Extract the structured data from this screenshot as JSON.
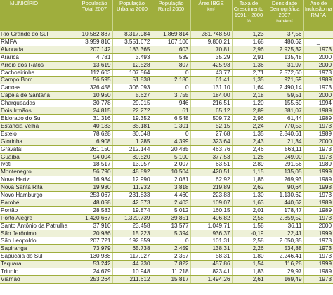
{
  "headers": [
    {
      "label": "MUNICÍPIO",
      "unit": ""
    },
    {
      "label": "População Total 2007",
      "unit": ""
    },
    {
      "label": "População Urbana 2000",
      "unit": ""
    },
    {
      "label": "População Rural 2000",
      "unit": ""
    },
    {
      "label": "Área IBGE",
      "unit": "km²"
    },
    {
      "label": "Taxa de Crescimento 1991 - 2000",
      "unit": "%"
    },
    {
      "label": "Densidade Demográfica 2007",
      "unit": "hab/km²"
    },
    {
      "label": "Ano de Inclusão na RMPA",
      "unit": ""
    }
  ],
  "rows": [
    [
      "Rio Grande do Sul",
      "10.582.887",
      "8.317.984",
      "1.869.814",
      "281.748,50",
      "1,23",
      "37,56",
      "_"
    ],
    [
      "RMPA",
      "3.959.810",
      "3.551.672",
      "167.106",
      "9.800,21",
      "1,68",
      "480,62",
      "_"
    ],
    [
      "Alvorada",
      "207.142",
      "183.365",
      "603",
      "70,81",
      "2,96",
      "2.925,32",
      "1973"
    ],
    [
      "Araricá",
      "4.781",
      "3.493",
      "539",
      "35,29",
      "2,91",
      "135,48",
      "2000"
    ],
    [
      "Arroio dos Ratos",
      "13.619",
      "12.528",
      "807",
      "425,93",
      "1,36",
      "31,97",
      "2000"
    ],
    [
      "Cachoeirinha",
      "112.603",
      "107.564",
      "0",
      "43,77",
      "2,71",
      "2.572,60",
      "1973"
    ],
    [
      "Campo Bom",
      "56.595",
      "51.838",
      "2.180",
      "61,41",
      "1,35",
      "921,59",
      "1989"
    ],
    [
      "Canoas",
      "326.458",
      "306.093",
      "0",
      "131,10",
      "1,64",
      "2.490,14",
      "1973"
    ],
    [
      "Capela de Santana",
      "10.950",
      "5.627",
      "3.755",
      "184,00",
      "2,18",
      "59,51",
      "2000"
    ],
    [
      "Charqueadas",
      "30.778",
      "29.015",
      "946",
      "216,51",
      "1,20",
      "155,69",
      "1994"
    ],
    [
      "Dois Irmãos",
      "24.815",
      "22.272",
      "61",
      "65,12",
      "2,89",
      "381,07",
      "1989"
    ],
    [
      "Eldorado do Sul",
      "31.316",
      "19.352",
      "6.548",
      "509,72",
      "2,96",
      "61,44",
      "1989"
    ],
    [
      "Estância Velha",
      "40.183",
      "35.181",
      "1.301",
      "52,15",
      "2,24",
      "770,53",
      "1973"
    ],
    [
      "Esteio",
      "78.628",
      "80.048",
      "0",
      "27,68",
      "1,35",
      "2.840,61",
      "1989"
    ],
    [
      "Glorinha",
      "6.908",
      "1.285",
      "4.399",
      "323,64",
      "2,43",
      "21,34",
      "2000"
    ],
    [
      "Gravataí",
      "261.150",
      "212.144",
      "20.485",
      "463,76",
      "2,46",
      "563,11",
      "1973"
    ],
    [
      "Guaíba",
      "94.004",
      "89.520",
      "5.100",
      "377,53",
      "1,26",
      "249,00",
      "1973"
    ],
    [
      "Ivoti",
      "18.517",
      "13.957",
      "2.007",
      "63,51",
      "2,89",
      "291,56",
      "1989"
    ],
    [
      "Montenegro",
      "56.790",
      "48.892",
      "10.504",
      "420,51",
      "1,15",
      "135,05",
      "1999"
    ],
    [
      "Nova Hartz",
      "16.984",
      "12.990",
      "2.081",
      "62,92",
      "1,86",
      "269,93",
      "1989"
    ],
    [
      "Nova Santa Rita",
      "19.930",
      "11.932",
      "3.818",
      "219,89",
      "2,62",
      "90,64",
      "1998"
    ],
    [
      "Novo Hamburgo",
      "253.067",
      "231.833",
      "4.460",
      "223,83",
      "1,30",
      "1.130,62",
      "1973"
    ],
    [
      "Parobé",
      "48.058",
      "42.373",
      "2.403",
      "109,07",
      "1,63",
      "440,62",
      "1989"
    ],
    [
      "Portão",
      "28.583",
      "19.874",
      "5.012",
      "160,15",
      "2,01",
      "178,47",
      "1989"
    ],
    [
      "Porto Alegre",
      "1.420.667",
      "1.320.739",
      "39.851",
      "496,82",
      "2,58",
      "2.859,52",
      "1973"
    ],
    [
      "Santo Antônio da Patrulha",
      "37.910",
      "23.458",
      "13.577",
      "1.049,71",
      "1,58",
      "36,11",
      "2000"
    ],
    [
      "São Jerônimo",
      "20.986",
      "15.223",
      "5.394",
      "936,37",
      "-0,19",
      "22,41",
      "1999"
    ],
    [
      "São Leopoldo",
      "207.721",
      "192.859",
      "0",
      "101,31",
      "2,58",
      "2.050,35",
      "1973"
    ],
    [
      "Sapiranga",
      "73.979",
      "65.738",
      "2.459",
      "138,31",
      "2,26",
      "534,88",
      "1973"
    ],
    [
      "Sapucaia do Sul",
      "130.988",
      "117.927",
      "2.357",
      "58,31",
      "1,80",
      "2.246,41",
      "1973"
    ],
    [
      "Taquara",
      "53.242",
      "44.730",
      "7.822",
      "457,86",
      "1,54",
      "116,28",
      "1999"
    ],
    [
      "Triunfo",
      "24.679",
      "10.948",
      "11.218",
      "823,41",
      "1,83",
      "29,97",
      "1989"
    ],
    [
      "Viamão",
      "253.264",
      "211.612",
      "15.817",
      "1.494,26",
      "2,61",
      "169,49",
      "1973"
    ]
  ]
}
